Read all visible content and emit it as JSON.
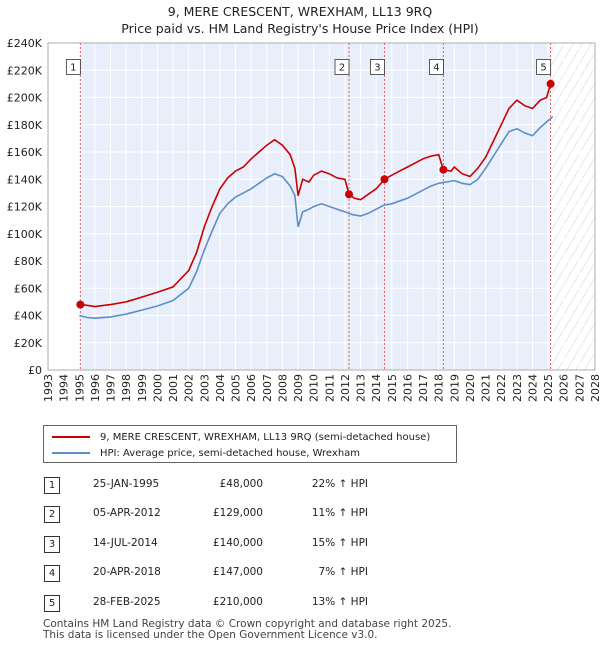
{
  "header": {
    "title": "9, MERE CRESCENT, WREXHAM, LL13 9RQ",
    "subtitle": "Price paid vs. HM Land Registry's House Price Index (HPI)"
  },
  "chart_data": {
    "type": "line",
    "xlim": [
      1993,
      2028
    ],
    "ylim": [
      0,
      240000
    ],
    "x_ticks": [
      "1993",
      "1994",
      "1995",
      "1996",
      "1997",
      "1998",
      "1999",
      "2000",
      "2001",
      "2002",
      "2003",
      "2004",
      "2005",
      "2006",
      "2007",
      "2008",
      "2009",
      "2010",
      "2011",
      "2012",
      "2013",
      "2014",
      "2015",
      "2016",
      "2017",
      "2018",
      "2019",
      "2020",
      "2021",
      "2022",
      "2023",
      "2024",
      "2025",
      "2026",
      "2027",
      "2028"
    ],
    "y_ticks": [
      {
        "value": 0,
        "label": "£0"
      },
      {
        "value": 20000,
        "label": "£20K"
      },
      {
        "value": 40000,
        "label": "£40K"
      },
      {
        "value": 60000,
        "label": "£60K"
      },
      {
        "value": 80000,
        "label": "£80K"
      },
      {
        "value": 100000,
        "label": "£100K"
      },
      {
        "value": 120000,
        "label": "£120K"
      },
      {
        "value": 140000,
        "label": "£140K"
      },
      {
        "value": 160000,
        "label": "£160K"
      },
      {
        "value": 180000,
        "label": "£180K"
      },
      {
        "value": 200000,
        "label": "£200K"
      },
      {
        "value": 220000,
        "label": "£220K"
      },
      {
        "value": 240000,
        "label": "£240K"
      }
    ],
    "grid": true,
    "shaded_ranges": [
      [
        1993,
        1995.07
      ],
      [
        2025.16,
        2028
      ]
    ],
    "series": [
      {
        "name": "9, MERE CRESCENT, WREXHAM, LL13 9RQ (semi-detached house)",
        "color": "#cc0000",
        "points": [
          [
            1995.07,
            48000
          ],
          [
            1995.5,
            47500
          ],
          [
            1996,
            46500
          ],
          [
            1997,
            48000
          ],
          [
            1998,
            50000
          ],
          [
            1999,
            53500
          ],
          [
            2000,
            57000
          ],
          [
            2001,
            61000
          ],
          [
            2002,
            73000
          ],
          [
            2002.5,
            86000
          ],
          [
            2003,
            105000
          ],
          [
            2003.5,
            120000
          ],
          [
            2004,
            133000
          ],
          [
            2004.5,
            141000
          ],
          [
            2005,
            146000
          ],
          [
            2005.5,
            149000
          ],
          [
            2006,
            155000
          ],
          [
            2006.5,
            160000
          ],
          [
            2007,
            165000
          ],
          [
            2007.5,
            169000
          ],
          [
            2008,
            165000
          ],
          [
            2008.5,
            158000
          ],
          [
            2008.8,
            148000
          ],
          [
            2009,
            128000
          ],
          [
            2009.3,
            140000
          ],
          [
            2009.7,
            138000
          ],
          [
            2010,
            143000
          ],
          [
            2010.5,
            146000
          ],
          [
            2011,
            144000
          ],
          [
            2011.5,
            141000
          ],
          [
            2012,
            140000
          ],
          [
            2012.26,
            129000
          ],
          [
            2012.6,
            126000
          ],
          [
            2013,
            125000
          ],
          [
            2013.5,
            129000
          ],
          [
            2014,
            133000
          ],
          [
            2014.53,
            140000
          ],
          [
            2015,
            143000
          ],
          [
            2015.5,
            146000
          ],
          [
            2016,
            149000
          ],
          [
            2016.5,
            152000
          ],
          [
            2017,
            155000
          ],
          [
            2017.5,
            157000
          ],
          [
            2018,
            158000
          ],
          [
            2018.3,
            147000
          ],
          [
            2018.8,
            146000
          ],
          [
            2019,
            149000
          ],
          [
            2019.5,
            144000
          ],
          [
            2020,
            142000
          ],
          [
            2020.5,
            148000
          ],
          [
            2021,
            156000
          ],
          [
            2021.5,
            168000
          ],
          [
            2022,
            180000
          ],
          [
            2022.5,
            192000
          ],
          [
            2023,
            198000
          ],
          [
            2023.5,
            194000
          ],
          [
            2024,
            192000
          ],
          [
            2024.5,
            198000
          ],
          [
            2024.9,
            200000
          ],
          [
            2025.16,
            210000
          ]
        ]
      },
      {
        "name": "HPI: Average price, semi-detached house, Wrexham",
        "color": "#5b8fcc",
        "points": [
          [
            1995,
            40000
          ],
          [
            1995.5,
            38500
          ],
          [
            1996,
            38000
          ],
          [
            1997,
            39000
          ],
          [
            1998,
            41000
          ],
          [
            1999,
            44000
          ],
          [
            2000,
            47000
          ],
          [
            2001,
            51000
          ],
          [
            2002,
            60000
          ],
          [
            2002.5,
            72000
          ],
          [
            2003,
            88000
          ],
          [
            2003.5,
            102000
          ],
          [
            2004,
            115000
          ],
          [
            2004.5,
            122000
          ],
          [
            2005,
            127000
          ],
          [
            2005.5,
            130000
          ],
          [
            2006,
            133000
          ],
          [
            2006.5,
            137000
          ],
          [
            2007,
            141000
          ],
          [
            2007.5,
            144000
          ],
          [
            2008,
            142000
          ],
          [
            2008.5,
            135000
          ],
          [
            2008.8,
            128000
          ],
          [
            2009,
            105000
          ],
          [
            2009.3,
            116000
          ],
          [
            2009.7,
            118000
          ],
          [
            2010,
            120000
          ],
          [
            2010.5,
            122000
          ],
          [
            2011,
            120000
          ],
          [
            2011.5,
            118000
          ],
          [
            2012,
            116000
          ],
          [
            2012.5,
            114000
          ],
          [
            2013,
            113000
          ],
          [
            2013.5,
            115000
          ],
          [
            2014,
            118000
          ],
          [
            2014.5,
            121000
          ],
          [
            2015,
            122000
          ],
          [
            2015.5,
            124000
          ],
          [
            2016,
            126000
          ],
          [
            2016.5,
            129000
          ],
          [
            2017,
            132000
          ],
          [
            2017.5,
            135000
          ],
          [
            2018,
            137000
          ],
          [
            2018.5,
            138000
          ],
          [
            2019,
            139000
          ],
          [
            2019.5,
            137000
          ],
          [
            2020,
            136000
          ],
          [
            2020.5,
            140000
          ],
          [
            2021,
            148000
          ],
          [
            2021.5,
            157000
          ],
          [
            2022,
            166000
          ],
          [
            2022.5,
            175000
          ],
          [
            2023,
            177000
          ],
          [
            2023.5,
            174000
          ],
          [
            2024,
            172000
          ],
          [
            2024.5,
            178000
          ],
          [
            2024.9,
            182000
          ],
          [
            2025.3,
            186000
          ]
        ]
      }
    ],
    "markers": [
      {
        "label": "1",
        "x": 1995.07,
        "y": 48000,
        "box_y": 222000
      },
      {
        "label": "2",
        "x": 2012.26,
        "y": 129000,
        "box_y": 222000
      },
      {
        "label": "3",
        "x": 2014.53,
        "y": 140000,
        "box_y": 222000
      },
      {
        "label": "4",
        "x": 2018.3,
        "y": 147000,
        "box_y": 222000
      },
      {
        "label": "5",
        "x": 2025.16,
        "y": 210000,
        "box_y": 222000
      }
    ]
  },
  "legend": {
    "items": [
      {
        "label": "9, MERE CRESCENT, WREXHAM, LL13 9RQ (semi-detached house)",
        "color": "#cc0000"
      },
      {
        "label": "HPI: Average price, semi-detached house, Wrexham",
        "color": "#5b8fcc"
      }
    ]
  },
  "sales": [
    {
      "num": "1",
      "date": "25-JAN-1995",
      "price": "£48,000",
      "hpi": "22% ↑ HPI"
    },
    {
      "num": "2",
      "date": "05-APR-2012",
      "price": "£129,000",
      "hpi": "11% ↑ HPI"
    },
    {
      "num": "3",
      "date": "14-JUL-2014",
      "price": "£140,000",
      "hpi": "15% ↑ HPI"
    },
    {
      "num": "4",
      "date": "20-APR-2018",
      "price": "£147,000",
      "hpi": "7% ↑ HPI"
    },
    {
      "num": "5",
      "date": "28-FEB-2025",
      "price": "£210,000",
      "hpi": "13% ↑ HPI"
    }
  ],
  "footer": {
    "line1": "Contains HM Land Registry data © Crown copyright and database right 2025.",
    "line2": "This data is licensed under the Open Government Licence v3.0."
  }
}
